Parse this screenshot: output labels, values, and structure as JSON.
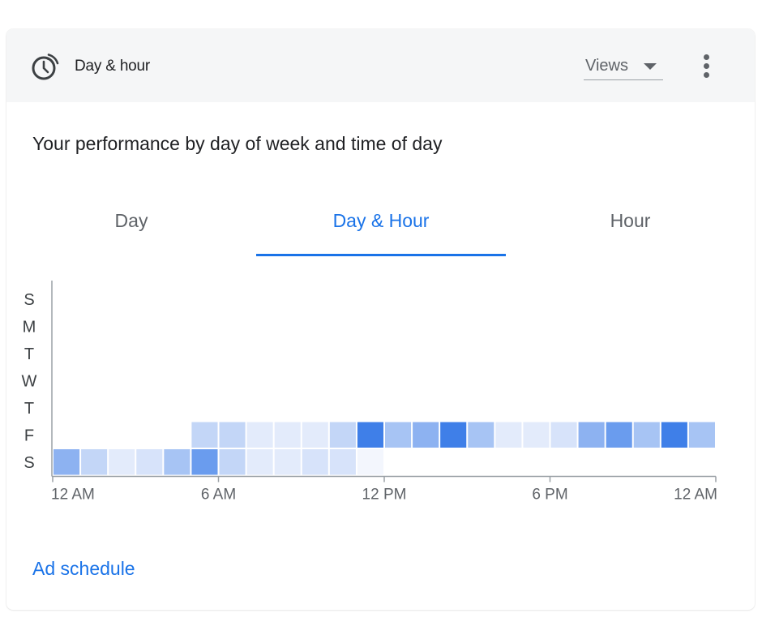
{
  "header": {
    "title": "Day & hour",
    "icon": "schedule-icon",
    "metric_select": {
      "selected": "Views"
    },
    "menu_icon": "more-vert-icon"
  },
  "subtitle": "Your performance by day of week and time of day",
  "tabs": [
    {
      "label": "Day",
      "active": false
    },
    {
      "label": "Day & Hour",
      "active": true
    },
    {
      "label": "Hour",
      "active": false
    }
  ],
  "links": {
    "ad_schedule": "Ad schedule"
  },
  "colors": {
    "accent": "#1a73e8",
    "heat_scale": [
      "#f3f6fd",
      "#e3ebfb",
      "#d7e3fa",
      "#c3d6f7",
      "#a7c4f4",
      "#8db2f1",
      "#6a9cee",
      "#3f7fe8"
    ]
  },
  "chart_data": {
    "type": "heatmap",
    "y_categories": [
      "S",
      "M",
      "T",
      "W",
      "T",
      "F",
      "S"
    ],
    "x_ticks": [
      {
        "hour": 0,
        "label": "12 AM"
      },
      {
        "hour": 6,
        "label": "6 AM"
      },
      {
        "hour": 12,
        "label": "12 PM"
      },
      {
        "hour": 18,
        "label": "6 PM"
      },
      {
        "hour": 24,
        "label": "12 AM"
      }
    ],
    "x_range": [
      0,
      24
    ],
    "intensity_scale": [
      0,
      7
    ],
    "cells": [
      {
        "day": 5,
        "hour": 5,
        "level": 3
      },
      {
        "day": 5,
        "hour": 6,
        "level": 3
      },
      {
        "day": 5,
        "hour": 7,
        "level": 1
      },
      {
        "day": 5,
        "hour": 8,
        "level": 1
      },
      {
        "day": 5,
        "hour": 9,
        "level": 1
      },
      {
        "day": 5,
        "hour": 10,
        "level": 3
      },
      {
        "day": 5,
        "hour": 11,
        "level": 7
      },
      {
        "day": 5,
        "hour": 12,
        "level": 4
      },
      {
        "day": 5,
        "hour": 13,
        "level": 5
      },
      {
        "day": 5,
        "hour": 14,
        "level": 7
      },
      {
        "day": 5,
        "hour": 15,
        "level": 4
      },
      {
        "day": 5,
        "hour": 16,
        "level": 1
      },
      {
        "day": 5,
        "hour": 17,
        "level": 1
      },
      {
        "day": 5,
        "hour": 18,
        "level": 2
      },
      {
        "day": 5,
        "hour": 19,
        "level": 5
      },
      {
        "day": 5,
        "hour": 20,
        "level": 6
      },
      {
        "day": 5,
        "hour": 21,
        "level": 4
      },
      {
        "day": 5,
        "hour": 22,
        "level": 7
      },
      {
        "day": 5,
        "hour": 23,
        "level": 4
      },
      {
        "day": 6,
        "hour": 0,
        "level": 5
      },
      {
        "day": 6,
        "hour": 1,
        "level": 3
      },
      {
        "day": 6,
        "hour": 2,
        "level": 1
      },
      {
        "day": 6,
        "hour": 3,
        "level": 2
      },
      {
        "day": 6,
        "hour": 4,
        "level": 4
      },
      {
        "day": 6,
        "hour": 5,
        "level": 6
      },
      {
        "day": 6,
        "hour": 6,
        "level": 3
      },
      {
        "day": 6,
        "hour": 7,
        "level": 1
      },
      {
        "day": 6,
        "hour": 8,
        "level": 1
      },
      {
        "day": 6,
        "hour": 9,
        "level": 2
      },
      {
        "day": 6,
        "hour": 10,
        "level": 2
      },
      {
        "day": 6,
        "hour": 11,
        "level": 0
      }
    ]
  }
}
